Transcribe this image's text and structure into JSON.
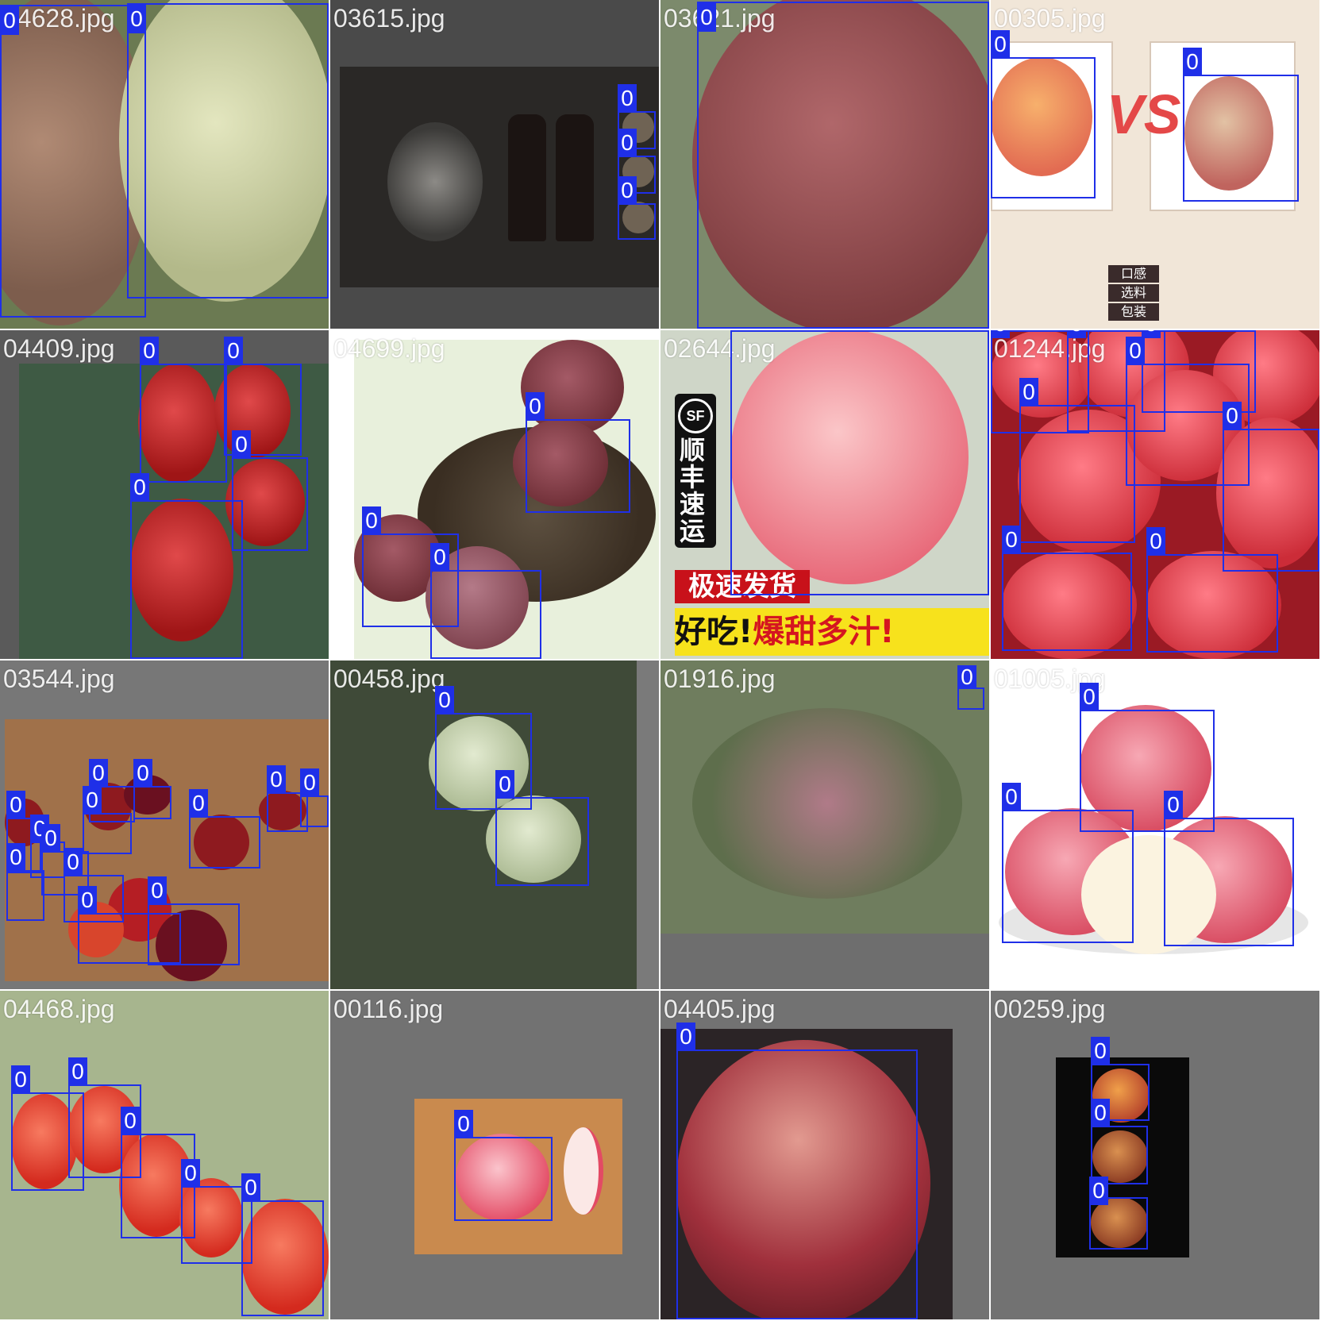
{
  "colors": {
    "box": "#1f2fe8",
    "label_text": "#ffffff",
    "tile_background": "#727272"
  },
  "tiles": [
    {
      "filename": "04628.jpg",
      "boxes": [
        {
          "label": "0"
        },
        {
          "label": "0"
        }
      ]
    },
    {
      "filename": "03615.jpg",
      "boxes": [
        {
          "label": "0"
        },
        {
          "label": "0"
        },
        {
          "label": "0"
        }
      ]
    },
    {
      "filename": "03621.jpg",
      "boxes": [
        {
          "label": "0"
        }
      ]
    },
    {
      "filename": "00305.jpg",
      "boxes": [
        {
          "label": "0"
        },
        {
          "label": "0"
        }
      ]
    },
    {
      "filename": "04409.jpg",
      "boxes": [
        {
          "label": "0"
        },
        {
          "label": "0"
        },
        {
          "label": "0"
        },
        {
          "label": "0"
        }
      ]
    },
    {
      "filename": "04699.jpg",
      "boxes": [
        {
          "label": "0"
        },
        {
          "label": "0"
        },
        {
          "label": "0"
        }
      ]
    },
    {
      "filename": "02644.jpg",
      "boxes": [
        {
          "label": "0"
        }
      ]
    },
    {
      "filename": "01244.jpg",
      "boxes": [
        {
          "label": "0"
        },
        {
          "label": "0"
        },
        {
          "label": "0"
        },
        {
          "label": "0"
        },
        {
          "label": "0"
        },
        {
          "label": "0"
        },
        {
          "label": "0"
        },
        {
          "label": "0"
        }
      ]
    },
    {
      "filename": "03544.jpg",
      "boxes": [
        {
          "label": "0"
        },
        {
          "label": "0"
        },
        {
          "label": "0"
        },
        {
          "label": "0"
        },
        {
          "label": "0"
        },
        {
          "label": "0"
        },
        {
          "label": "0"
        },
        {
          "label": "0"
        },
        {
          "label": "0"
        },
        {
          "label": "0"
        },
        {
          "label": "0"
        },
        {
          "label": "0"
        },
        {
          "label": "0"
        }
      ]
    },
    {
      "filename": "00458.jpg",
      "boxes": [
        {
          "label": "0"
        },
        {
          "label": "0"
        }
      ]
    },
    {
      "filename": "01916.jpg",
      "boxes": [
        {
          "label": "0"
        }
      ]
    },
    {
      "filename": "01005.jpg",
      "boxes": [
        {
          "label": "0"
        },
        {
          "label": "0"
        },
        {
          "label": "0"
        }
      ]
    },
    {
      "filename": "04468.jpg",
      "boxes": [
        {
          "label": "0"
        },
        {
          "label": "0"
        },
        {
          "label": "0"
        },
        {
          "label": "0"
        },
        {
          "label": "0"
        }
      ]
    },
    {
      "filename": "00116.jpg",
      "boxes": [
        {
          "label": "0"
        }
      ]
    },
    {
      "filename": "04405.jpg",
      "boxes": [
        {
          "label": "0"
        }
      ]
    },
    {
      "filename": "00259.jpg",
      "boxes": [
        {
          "label": "0"
        },
        {
          "label": "0"
        },
        {
          "label": "0"
        }
      ]
    }
  ],
  "image_text": {
    "t2_vs": "VS",
    "t2_pills": [
      "口感",
      "选料",
      "包装"
    ],
    "t6_courier": "顺丰速运",
    "t6_sf": "SF",
    "t6_banner1": "极速发货",
    "t6_banner2a": "好吃!",
    "t6_banner2b": "爆甜多汁!"
  }
}
